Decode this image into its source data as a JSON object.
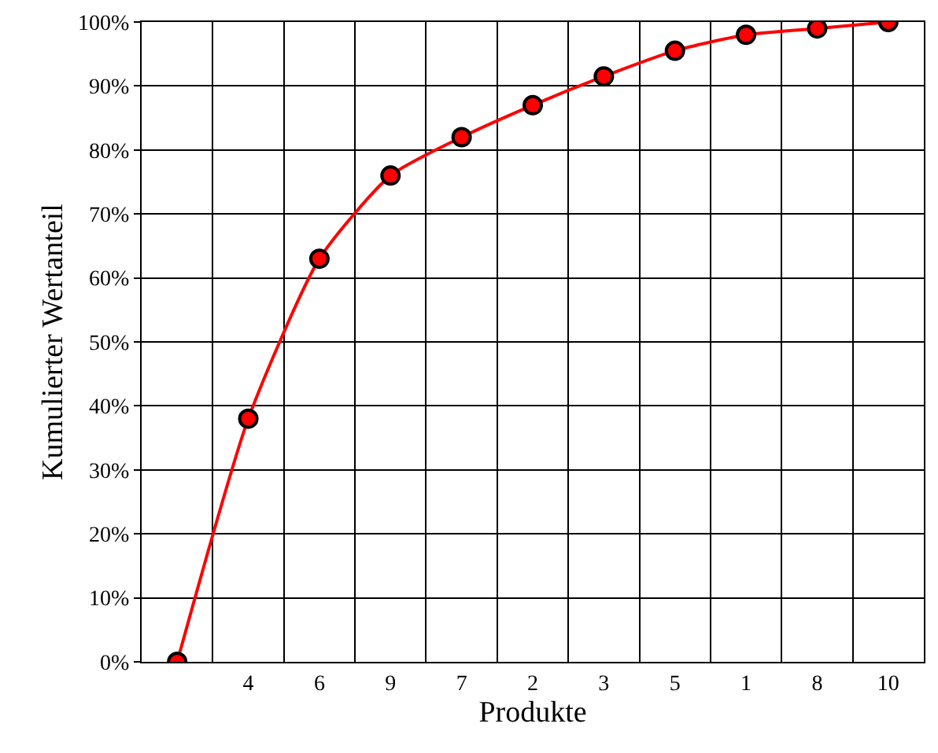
{
  "chart_data": {
    "type": "line",
    "xlabel": "Produkte",
    "ylabel": "Kumulierter Wertanteil",
    "categories": [
      null,
      "4",
      "6",
      "9",
      "7",
      "2",
      "3",
      "5",
      "1",
      "8",
      "10"
    ],
    "series": [
      {
        "color": "#ff0000",
        "values": [
          0,
          38,
          63,
          76,
          82,
          87,
          91.5,
          95.5,
          98,
          99,
          100
        ]
      }
    ],
    "ylim": [
      0,
      100
    ],
    "yticks": [
      {
        "value": 0,
        "label": "0%"
      },
      {
        "value": 10,
        "label": "10%"
      },
      {
        "value": 20,
        "label": "20%"
      },
      {
        "value": 30,
        "label": "30%"
      },
      {
        "value": 40,
        "label": "40%"
      },
      {
        "value": 50,
        "label": "50%"
      },
      {
        "value": 60,
        "label": "60%"
      },
      {
        "value": 70,
        "label": "70%"
      },
      {
        "value": 80,
        "label": "80%"
      },
      {
        "value": 90,
        "label": "90%"
      },
      {
        "value": 100,
        "label": "100%"
      }
    ],
    "grid": true,
    "marker": "circle",
    "line_style": "solid"
  }
}
